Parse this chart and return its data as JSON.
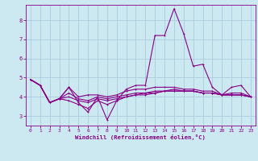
{
  "xlabel": "Windchill (Refroidissement éolien,°C)",
  "bg_color": "#cce8f0",
  "grid_color": "#aaccdd",
  "line_color": "#880088",
  "x": [
    0,
    1,
    2,
    3,
    4,
    5,
    6,
    7,
    8,
    9,
    10,
    11,
    12,
    13,
    14,
    15,
    16,
    17,
    18,
    19,
    20,
    21,
    22,
    23
  ],
  "y_main": [
    4.9,
    4.6,
    3.7,
    3.9,
    4.5,
    3.7,
    3.2,
    4.0,
    2.8,
    3.8,
    4.4,
    4.6,
    4.6,
    7.2,
    7.2,
    8.6,
    7.3,
    5.6,
    5.7,
    4.5,
    4.1,
    4.5,
    4.6,
    4.0
  ],
  "y_line2": [
    4.9,
    4.6,
    3.7,
    3.9,
    4.5,
    4.0,
    4.1,
    4.1,
    4.0,
    4.1,
    4.3,
    4.4,
    4.4,
    4.5,
    4.5,
    4.5,
    4.4,
    4.4,
    4.3,
    4.3,
    4.1,
    4.2,
    4.2,
    4.0
  ],
  "y_line3": [
    4.9,
    4.6,
    3.7,
    3.9,
    3.8,
    3.6,
    3.4,
    3.8,
    3.6,
    3.8,
    4.0,
    4.1,
    4.1,
    4.2,
    4.3,
    4.3,
    4.3,
    4.3,
    4.2,
    4.2,
    4.1,
    4.1,
    4.1,
    4.0
  ],
  "y_line4": [
    4.9,
    4.6,
    3.7,
    3.9,
    4.2,
    3.9,
    3.8,
    4.0,
    3.9,
    4.0,
    4.1,
    4.2,
    4.2,
    4.3,
    4.3,
    4.4,
    4.3,
    4.3,
    4.2,
    4.2,
    4.1,
    4.1,
    4.1,
    4.0
  ],
  "y_line5": [
    4.9,
    4.6,
    3.7,
    3.9,
    4.0,
    3.8,
    3.7,
    3.9,
    3.8,
    3.9,
    4.0,
    4.1,
    4.2,
    4.2,
    4.3,
    4.3,
    4.3,
    4.3,
    4.2,
    4.2,
    4.1,
    4.1,
    4.1,
    4.0
  ],
  "ylim": [
    2.5,
    8.8
  ],
  "xlim": [
    -0.5,
    23.5
  ],
  "yticks": [
    3,
    4,
    5,
    6,
    7,
    8
  ],
  "xticks": [
    0,
    1,
    2,
    3,
    4,
    5,
    6,
    7,
    8,
    9,
    10,
    11,
    12,
    13,
    14,
    15,
    16,
    17,
    18,
    19,
    20,
    21,
    22,
    23
  ]
}
